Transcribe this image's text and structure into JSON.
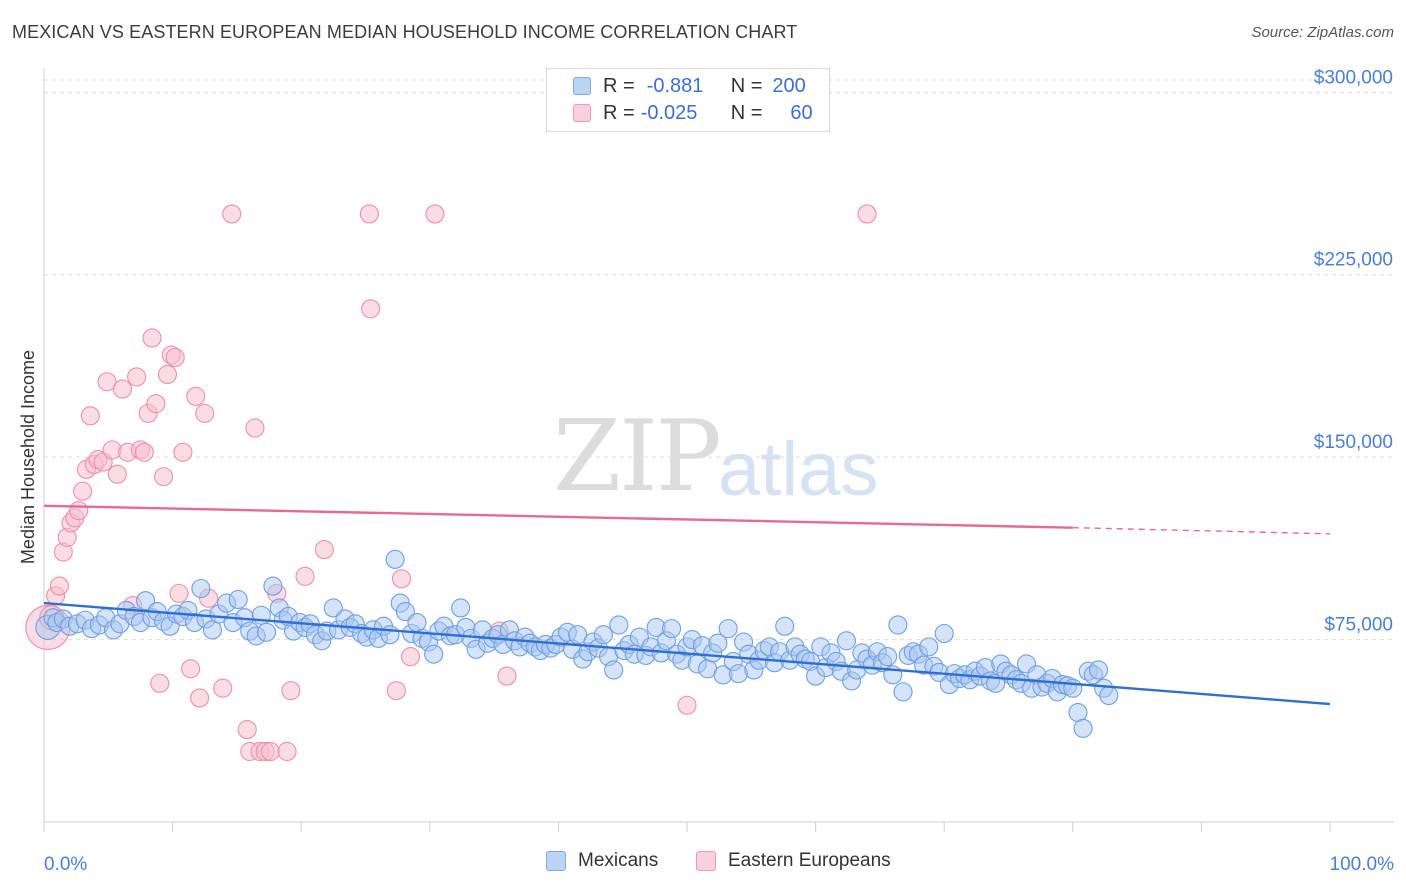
{
  "header": {
    "title": "MEXICAN VS EASTERN EUROPEAN MEDIAN HOUSEHOLD INCOME CORRELATION CHART",
    "source": "Source: ZipAtlas.com"
  },
  "watermark": {
    "zip": "ZIP",
    "atlas": "atlas"
  },
  "legend": {
    "row1": {
      "r_label": "R =",
      "r_value": "-0.881",
      "n_label": "N =",
      "n_value": "200"
    },
    "row2": {
      "r_label": "R =",
      "r_value": "-0.025",
      "n_label": "N =",
      "n_value": "60"
    }
  },
  "bottom_legend": {
    "series1": "Mexicans",
    "series2": "Eastern Europeans"
  },
  "colors": {
    "blue_fill": "#a9c8f0",
    "blue_stroke": "#6f9fe0",
    "blue_line": "#2f6fd0",
    "pink_fill": "#f6bfd0",
    "pink_stroke": "#ec8fab",
    "pink_line": "#e56b93",
    "tick_text": "#4a7fd4",
    "grid": "#dddddd"
  },
  "chart_data": {
    "type": "scatter",
    "title": "MEXICAN VS EASTERN EUROPEAN MEDIAN HOUSEHOLD INCOME CORRELATION CHART",
    "xlabel": "",
    "ylabel": "Median Household Income",
    "xlim": [
      0,
      100
    ],
    "ylim": [
      0,
      310000
    ],
    "x_tick_labels": [
      "0.0%",
      "100.0%"
    ],
    "y_ticks": [
      75000,
      150000,
      225000,
      300000
    ],
    "y_tick_labels": [
      "$75,000",
      "$150,000",
      "$225,000",
      "$300,000"
    ],
    "grid": "horizontal dashed",
    "legend_position": "top-center",
    "series": [
      {
        "name": "Mexicans",
        "r": -0.881,
        "n": 200,
        "trend": {
          "x": [
            0,
            100
          ],
          "y": [
            90000,
            48500
          ]
        },
        "points": [
          [
            0.3,
            80000
          ],
          [
            0.7,
            84000
          ],
          [
            1.0,
            82000
          ],
          [
            1.5,
            83500
          ],
          [
            2.0,
            80500
          ],
          [
            2.6,
            81500
          ],
          [
            3.2,
            83000
          ],
          [
            3.7,
            79500
          ],
          [
            4.3,
            81000
          ],
          [
            4.8,
            84000
          ],
          [
            5.4,
            79000
          ],
          [
            5.9,
            81500
          ],
          [
            6.4,
            87000
          ],
          [
            7.0,
            84500
          ],
          [
            7.5,
            82000
          ],
          [
            7.9,
            91000
          ],
          [
            8.4,
            84000
          ],
          [
            8.8,
            86500
          ],
          [
            9.3,
            82500
          ],
          [
            9.8,
            80500
          ],
          [
            10.3,
            85500
          ],
          [
            10.8,
            84500
          ],
          [
            11.2,
            87000
          ],
          [
            11.7,
            82000
          ],
          [
            12.2,
            96000
          ],
          [
            12.6,
            83500
          ],
          [
            13.1,
            79000
          ],
          [
            13.6,
            85500
          ],
          [
            14.2,
            90000
          ],
          [
            14.7,
            82000
          ],
          [
            15.1,
            91500
          ],
          [
            15.6,
            84000
          ],
          [
            16.0,
            78500
          ],
          [
            16.5,
            76500
          ],
          [
            16.9,
            85000
          ],
          [
            17.3,
            78000
          ],
          [
            17.8,
            97000
          ],
          [
            18.3,
            88000
          ],
          [
            18.6,
            83000
          ],
          [
            19.0,
            84500
          ],
          [
            19.4,
            78500
          ],
          [
            19.9,
            82000
          ],
          [
            20.3,
            80000
          ],
          [
            20.7,
            81500
          ],
          [
            21.1,
            77000
          ],
          [
            21.6,
            74500
          ],
          [
            22.0,
            78500
          ],
          [
            22.5,
            88000
          ],
          [
            22.9,
            79000
          ],
          [
            23.4,
            83500
          ],
          [
            23.8,
            80000
          ],
          [
            24.2,
            81500
          ],
          [
            24.7,
            77500
          ],
          [
            25.1,
            76000
          ],
          [
            25.6,
            79000
          ],
          [
            26.0,
            75500
          ],
          [
            26.4,
            80500
          ],
          [
            26.9,
            77000
          ],
          [
            27.3,
            108000
          ],
          [
            27.7,
            90000
          ],
          [
            28.1,
            86500
          ],
          [
            28.6,
            77500
          ],
          [
            29.0,
            82000
          ],
          [
            29.4,
            75500
          ],
          [
            29.9,
            74000
          ],
          [
            30.3,
            69000
          ],
          [
            30.7,
            78500
          ],
          [
            31.1,
            80500
          ],
          [
            31.6,
            76500
          ],
          [
            32.0,
            77000
          ],
          [
            32.4,
            88000
          ],
          [
            32.8,
            80000
          ],
          [
            33.2,
            75500
          ],
          [
            33.6,
            71000
          ],
          [
            34.1,
            79000
          ],
          [
            34.5,
            73500
          ],
          [
            34.9,
            75500
          ],
          [
            35.3,
            77000
          ],
          [
            35.7,
            73000
          ],
          [
            36.2,
            79000
          ],
          [
            36.6,
            74500
          ],
          [
            37.0,
            72000
          ],
          [
            37.4,
            76000
          ],
          [
            37.8,
            73500
          ],
          [
            38.2,
            72000
          ],
          [
            38.6,
            70500
          ],
          [
            39.0,
            73000
          ],
          [
            39.4,
            71500
          ],
          [
            39.8,
            73000
          ],
          [
            40.2,
            76000
          ],
          [
            40.7,
            78000
          ],
          [
            41.1,
            71000
          ],
          [
            41.5,
            77000
          ],
          [
            41.9,
            67000
          ],
          [
            42.3,
            70000
          ],
          [
            42.7,
            74000
          ],
          [
            43.1,
            71500
          ],
          [
            43.5,
            77000
          ],
          [
            43.9,
            68000
          ],
          [
            44.3,
            62500
          ],
          [
            44.7,
            81000
          ],
          [
            45.1,
            70500
          ],
          [
            45.5,
            73000
          ],
          [
            45.9,
            69000
          ],
          [
            46.3,
            76000
          ],
          [
            46.8,
            68500
          ],
          [
            47.2,
            72000
          ],
          [
            47.6,
            80000
          ],
          [
            48.0,
            69500
          ],
          [
            48.4,
            74500
          ],
          [
            48.8,
            79500
          ],
          [
            49.2,
            69000
          ],
          [
            49.6,
            66500
          ],
          [
            50.0,
            72000
          ],
          [
            50.4,
            75000
          ],
          [
            50.8,
            65000
          ],
          [
            51.2,
            72500
          ],
          [
            51.6,
            63000
          ],
          [
            52.0,
            69500
          ],
          [
            52.4,
            73500
          ],
          [
            52.8,
            60500
          ],
          [
            53.2,
            79500
          ],
          [
            53.6,
            66000
          ],
          [
            54.0,
            61000
          ],
          [
            54.4,
            74000
          ],
          [
            54.8,
            69000
          ],
          [
            55.2,
            62500
          ],
          [
            55.6,
            66500
          ],
          [
            56.0,
            70500
          ],
          [
            56.4,
            72000
          ],
          [
            56.8,
            65500
          ],
          [
            57.2,
            70000
          ],
          [
            57.6,
            80500
          ],
          [
            58.0,
            66500
          ],
          [
            58.4,
            72000
          ],
          [
            58.8,
            69000
          ],
          [
            59.2,
            67000
          ],
          [
            59.6,
            66000
          ],
          [
            60.0,
            60000
          ],
          [
            60.4,
            72000
          ],
          [
            60.8,
            63500
          ],
          [
            61.2,
            69500
          ],
          [
            61.6,
            66000
          ],
          [
            62.0,
            62000
          ],
          [
            62.4,
            74500
          ],
          [
            62.8,
            58000
          ],
          [
            63.2,
            62500
          ],
          [
            63.6,
            69500
          ],
          [
            64.0,
            67000
          ],
          [
            64.4,
            64500
          ],
          [
            64.8,
            70000
          ],
          [
            65.2,
            65500
          ],
          [
            65.6,
            68000
          ],
          [
            66.0,
            60500
          ],
          [
            66.4,
            81000
          ],
          [
            66.8,
            53500
          ],
          [
            67.2,
            68500
          ],
          [
            67.6,
            70000
          ],
          [
            68.0,
            69000
          ],
          [
            68.4,
            64500
          ],
          [
            68.8,
            72000
          ],
          [
            69.2,
            64000
          ],
          [
            69.6,
            61500
          ],
          [
            70.0,
            77500
          ],
          [
            70.4,
            56500
          ],
          [
            70.8,
            61000
          ],
          [
            71.2,
            59000
          ],
          [
            71.6,
            60500
          ],
          [
            72.0,
            58500
          ],
          [
            72.4,
            62000
          ],
          [
            72.8,
            60000
          ],
          [
            73.2,
            63500
          ],
          [
            73.6,
            58000
          ],
          [
            74.0,
            57000
          ],
          [
            74.4,
            65000
          ],
          [
            74.8,
            62000
          ],
          [
            75.2,
            60500
          ],
          [
            75.6,
            58500
          ],
          [
            76.0,
            57000
          ],
          [
            76.4,
            65000
          ],
          [
            76.8,
            55000
          ],
          [
            77.2,
            60500
          ],
          [
            77.6,
            55500
          ],
          [
            78.0,
            57000
          ],
          [
            78.4,
            59000
          ],
          [
            78.8,
            53500
          ],
          [
            79.2,
            56500
          ],
          [
            79.6,
            56000
          ],
          [
            80.0,
            55000
          ],
          [
            80.4,
            45000
          ],
          [
            80.8,
            38500
          ],
          [
            81.2,
            62000
          ],
          [
            81.6,
            60500
          ],
          [
            82.0,
            62500
          ],
          [
            82.4,
            55000
          ],
          [
            82.8,
            52000
          ]
        ]
      },
      {
        "name": "Eastern Europeans",
        "r": -0.025,
        "n": 60,
        "trend": {
          "x": [
            0,
            80
          ],
          "y": [
            130000,
            121000
          ]
        },
        "trend_dashed": {
          "x": [
            80,
            100
          ],
          "y": [
            121000,
            118500
          ]
        },
        "points": [
          [
            0.3,
            80000
          ],
          [
            0.6,
            84000
          ],
          [
            0.9,
            93000
          ],
          [
            1.2,
            97000
          ],
          [
            1.5,
            111000
          ],
          [
            1.8,
            117000
          ],
          [
            2.1,
            123000
          ],
          [
            2.4,
            125000
          ],
          [
            2.7,
            128000
          ],
          [
            3.0,
            136000
          ],
          [
            3.3,
            145000
          ],
          [
            3.6,
            167000
          ],
          [
            3.9,
            147000
          ],
          [
            4.2,
            149000
          ],
          [
            4.6,
            148000
          ],
          [
            4.9,
            181000
          ],
          [
            5.3,
            153000
          ],
          [
            5.7,
            143000
          ],
          [
            6.1,
            178000
          ],
          [
            6.5,
            152000
          ],
          [
            6.9,
            89000
          ],
          [
            7.2,
            183000
          ],
          [
            7.5,
            153000
          ],
          [
            7.8,
            152000
          ],
          [
            8.1,
            168000
          ],
          [
            8.4,
            199000
          ],
          [
            8.7,
            172000
          ],
          [
            9.0,
            57000
          ],
          [
            9.3,
            142000
          ],
          [
            9.6,
            184000
          ],
          [
            9.9,
            192000
          ],
          [
            10.2,
            191000
          ],
          [
            10.5,
            94000
          ],
          [
            10.8,
            152000
          ],
          [
            11.4,
            63000
          ],
          [
            11.8,
            175000
          ],
          [
            12.1,
            51000
          ],
          [
            12.5,
            168000
          ],
          [
            12.8,
            92000
          ],
          [
            13.9,
            55000
          ],
          [
            14.6,
            250000
          ],
          [
            15.8,
            38000
          ],
          [
            16.0,
            29000
          ],
          [
            16.4,
            162000
          ],
          [
            16.8,
            29000
          ],
          [
            17.2,
            29000
          ],
          [
            17.6,
            29000
          ],
          [
            18.1,
            94000
          ],
          [
            18.9,
            29000
          ],
          [
            19.2,
            54000
          ],
          [
            20.3,
            101000
          ],
          [
            21.8,
            112000
          ],
          [
            25.3,
            250000
          ],
          [
            25.4,
            211000
          ],
          [
            27.4,
            54000
          ],
          [
            27.8,
            100000
          ],
          [
            28.5,
            68000
          ],
          [
            30.4,
            250000
          ],
          [
            35.4,
            78500
          ],
          [
            36.0,
            60000
          ],
          [
            50.0,
            48000
          ],
          [
            64.0,
            250000
          ]
        ]
      }
    ]
  }
}
